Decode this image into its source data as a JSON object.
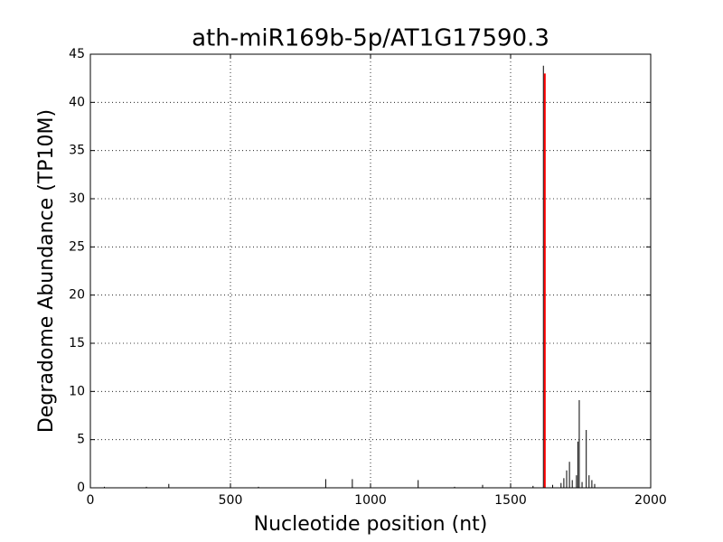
{
  "chart_data": {
    "type": "spike",
    "title": "ath-miR169b-5p/AT1G17590.3",
    "x_label": "Nucleotide position (nt)",
    "y_label": "Degradome Abundance (TP10M)",
    "xlim": [
      0,
      2000
    ],
    "xticks": [
      0,
      500,
      1000,
      1500,
      2000
    ],
    "ylim": [
      0,
      45
    ],
    "yticks": [
      0,
      5,
      10,
      15,
      20,
      25,
      30,
      35,
      40,
      45
    ],
    "grid": true,
    "series": [
      {
        "color": "#000000",
        "x": [
          50,
          200,
          280,
          600,
          840,
          935,
          1000,
          1170,
          1300,
          1400,
          1500,
          1580,
          1617,
          1650,
          1680,
          1690,
          1700,
          1710,
          1720,
          1735,
          1740,
          1745,
          1755,
          1770,
          1780,
          1790,
          1800
        ],
        "values": [
          0.1,
          0.1,
          0.4,
          0.1,
          0.9,
          0.9,
          0.1,
          0.8,
          0.1,
          0.3,
          0.1,
          0.2,
          43.8,
          0.3,
          0.5,
          1.0,
          1.8,
          2.7,
          0.8,
          1.3,
          4.8,
          9.1,
          0.6,
          6.0,
          1.3,
          0.8,
          0.4
        ]
      },
      {
        "color": "#ff0000",
        "x": [
          1622
        ],
        "values": [
          43.0
        ]
      }
    ]
  }
}
